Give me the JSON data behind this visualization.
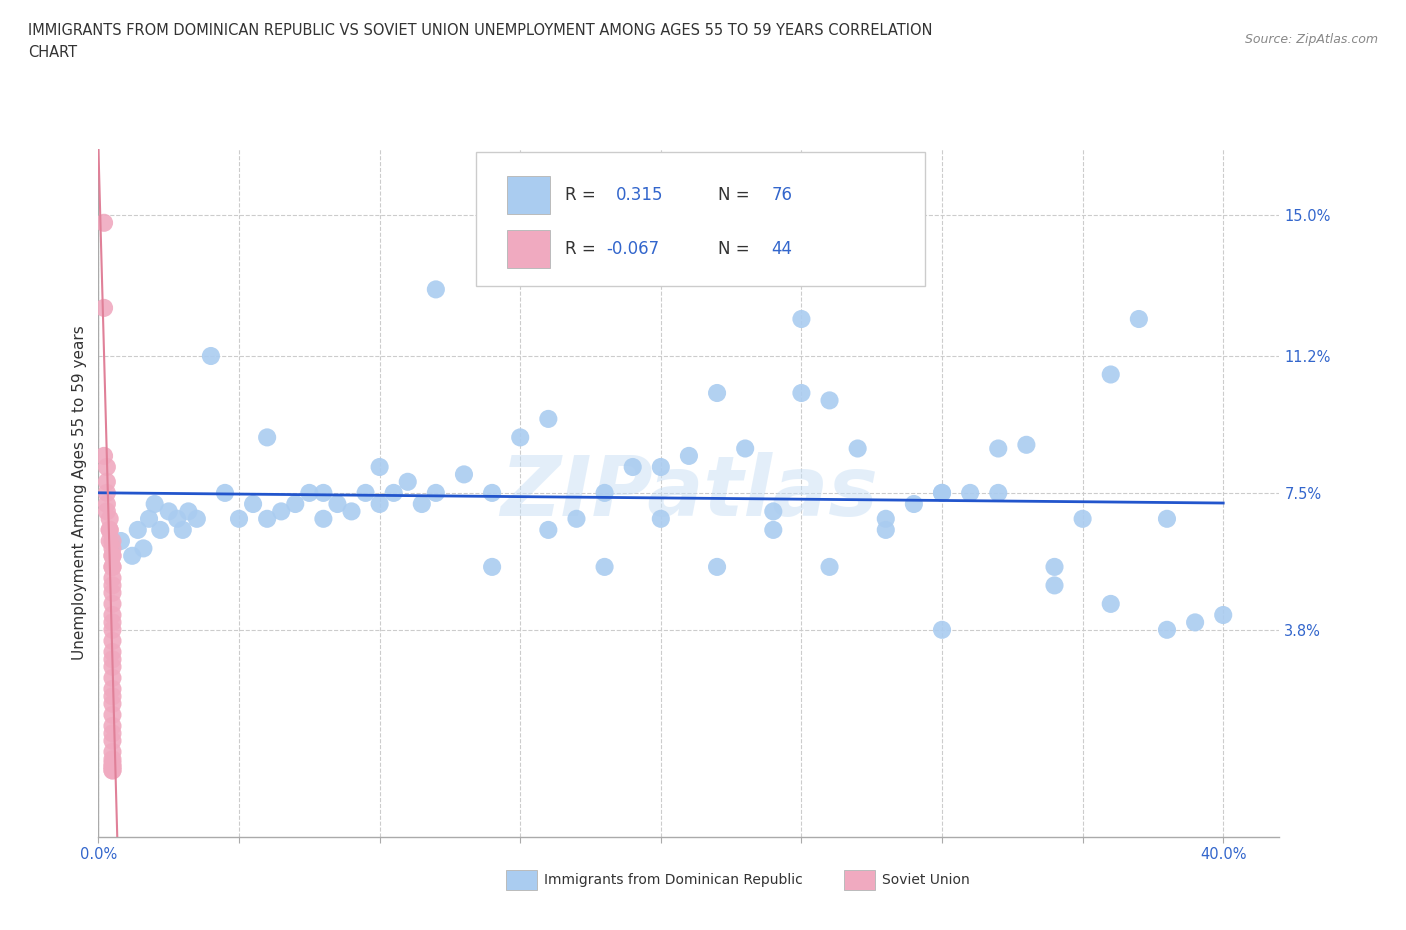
{
  "title_line1": "IMMIGRANTS FROM DOMINICAN REPUBLIC VS SOVIET UNION UNEMPLOYMENT AMONG AGES 55 TO 59 YEARS CORRELATION",
  "title_line2": "CHART",
  "source": "Source: ZipAtlas.com",
  "ylabel": "Unemployment Among Ages 55 to 59 years",
  "xlim": [
    0.0,
    0.42
  ],
  "ylim": [
    -0.018,
    0.168
  ],
  "xticks": [
    0.0,
    0.05,
    0.1,
    0.15,
    0.2,
    0.25,
    0.3,
    0.35,
    0.4
  ],
  "xtick_labels_show": [
    "0.0%",
    "",
    "",
    "",
    "",
    "",
    "",
    "",
    "40.0%"
  ],
  "ytick_positions": [
    0.038,
    0.075,
    0.112,
    0.15
  ],
  "ytick_labels": [
    "3.8%",
    "7.5%",
    "11.2%",
    "15.0%"
  ],
  "blue_color": "#aaccf0",
  "pink_color": "#f0aac0",
  "blue_line_color": "#2255cc",
  "pink_line_color": "#e08098",
  "grid_color": "#cccccc",
  "legend_label1": "Immigrants from Dominican Republic",
  "legend_label2": "Soviet Union",
  "blue_R": 0.315,
  "blue_N": 76,
  "pink_R": -0.067,
  "pink_N": 44,
  "watermark_color": "#c8dff5",
  "watermark_alpha": 0.5,
  "background": "#ffffff",
  "blue_scatter_x": [
    0.008,
    0.012,
    0.014,
    0.016,
    0.018,
    0.02,
    0.022,
    0.025,
    0.028,
    0.03,
    0.032,
    0.035,
    0.04,
    0.045,
    0.05,
    0.055,
    0.06,
    0.065,
    0.07,
    0.075,
    0.08,
    0.085,
    0.09,
    0.095,
    0.1,
    0.105,
    0.11,
    0.115,
    0.12,
    0.13,
    0.14,
    0.15,
    0.16,
    0.17,
    0.18,
    0.19,
    0.2,
    0.21,
    0.22,
    0.23,
    0.24,
    0.25,
    0.26,
    0.27,
    0.28,
    0.29,
    0.3,
    0.31,
    0.32,
    0.33,
    0.34,
    0.35,
    0.36,
    0.37,
    0.38,
    0.39,
    0.06,
    0.08,
    0.1,
    0.12,
    0.14,
    0.16,
    0.18,
    0.2,
    0.22,
    0.24,
    0.26,
    0.28,
    0.3,
    0.32,
    0.34,
    0.36,
    0.38,
    0.4,
    0.25,
    0.3
  ],
  "blue_scatter_y": [
    0.062,
    0.058,
    0.065,
    0.06,
    0.068,
    0.072,
    0.065,
    0.07,
    0.068,
    0.065,
    0.07,
    0.068,
    0.112,
    0.075,
    0.068,
    0.072,
    0.068,
    0.07,
    0.072,
    0.075,
    0.068,
    0.072,
    0.07,
    0.075,
    0.072,
    0.075,
    0.078,
    0.072,
    0.13,
    0.08,
    0.075,
    0.09,
    0.095,
    0.068,
    0.075,
    0.082,
    0.082,
    0.085,
    0.102,
    0.087,
    0.07,
    0.102,
    0.1,
    0.087,
    0.068,
    0.072,
    0.075,
    0.075,
    0.087,
    0.088,
    0.055,
    0.068,
    0.107,
    0.122,
    0.068,
    0.04,
    0.09,
    0.075,
    0.082,
    0.075,
    0.055,
    0.065,
    0.055,
    0.068,
    0.055,
    0.065,
    0.055,
    0.065,
    0.075,
    0.075,
    0.05,
    0.045,
    0.038,
    0.042,
    0.122,
    0.038
  ],
  "pink_scatter_x": [
    0.002,
    0.002,
    0.002,
    0.003,
    0.003,
    0.003,
    0.003,
    0.003,
    0.004,
    0.004,
    0.004,
    0.004,
    0.005,
    0.005,
    0.005,
    0.005,
    0.005,
    0.005,
    0.005,
    0.005,
    0.005,
    0.005,
    0.005,
    0.005,
    0.005,
    0.005,
    0.005,
    0.005,
    0.005,
    0.005,
    0.005,
    0.005,
    0.005,
    0.005,
    0.005,
    0.005,
    0.005,
    0.005,
    0.005,
    0.005,
    0.005,
    0.005,
    0.005,
    0.005
  ],
  "pink_scatter_y": [
    0.148,
    0.125,
    0.085,
    0.082,
    0.078,
    0.075,
    0.072,
    0.07,
    0.068,
    0.065,
    0.065,
    0.062,
    0.062,
    0.06,
    0.058,
    0.058,
    0.055,
    0.055,
    0.052,
    0.05,
    0.048,
    0.045,
    0.042,
    0.04,
    0.038,
    0.035,
    0.032,
    0.03,
    0.028,
    0.025,
    0.022,
    0.02,
    0.018,
    0.015,
    0.012,
    0.01,
    0.008,
    0.005,
    0.003,
    0.002,
    0.001,
    0.001,
    0.0,
    0.0
  ]
}
